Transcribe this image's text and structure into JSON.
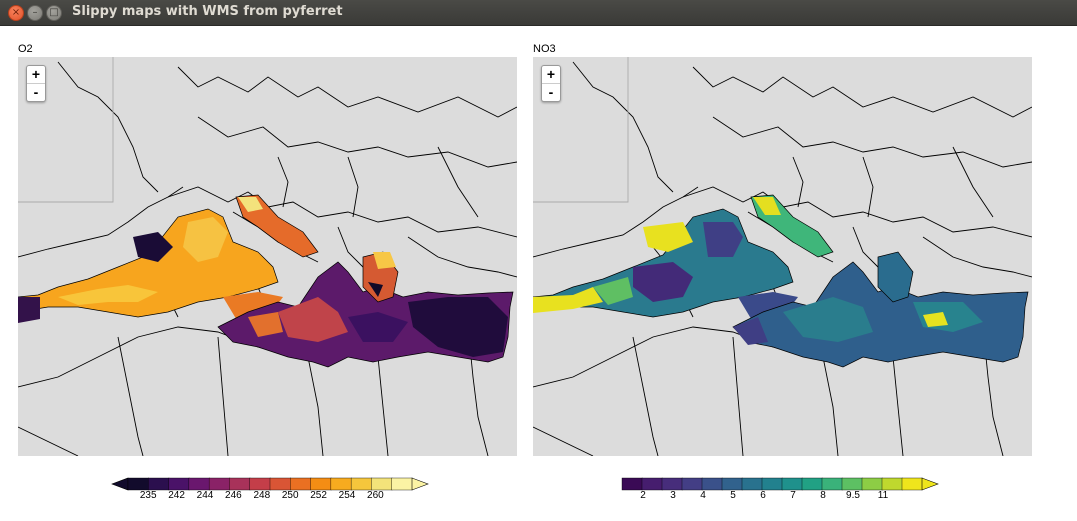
{
  "window": {
    "title": "Slippy maps with WMS from pyferret",
    "close_glyph": "×",
    "min_glyph": "–",
    "max_glyph": "□"
  },
  "maps": [
    {
      "label": "O2",
      "zoom_in": "+",
      "zoom_out": "-",
      "colorbar": {
        "ticks": [
          "235",
          "242",
          "244",
          "246",
          "248",
          "250",
          "252",
          "254",
          "260"
        ],
        "colors": [
          "#120b2c",
          "#2b0f4e",
          "#4a1268",
          "#6a176e",
          "#8a2267",
          "#a8325a",
          "#c43e49",
          "#d95535",
          "#ea7022",
          "#f48d14",
          "#f7ab1f",
          "#f5c63c",
          "#f3e37a",
          "#fbf3a4"
        ]
      }
    },
    {
      "label": "NO3",
      "zoom_in": "+",
      "zoom_out": "-",
      "colorbar": {
        "ticks": [
          "2",
          "3",
          "4",
          "5",
          "6",
          "7",
          "8",
          "9.5",
          "11"
        ],
        "colors": [
          "#3a0a55",
          "#461d6e",
          "#472d7b",
          "#433e85",
          "#3a518a",
          "#31628d",
          "#29728e",
          "#22818e",
          "#1f918c",
          "#21a184",
          "#3ab27a",
          "#5dc063",
          "#8dcd45",
          "#bfd82e",
          "#efe51c"
        ]
      }
    }
  ],
  "colors": {
    "land": "#dcdcdc",
    "border": "#000000",
    "titlebar": "#3c3b37"
  }
}
